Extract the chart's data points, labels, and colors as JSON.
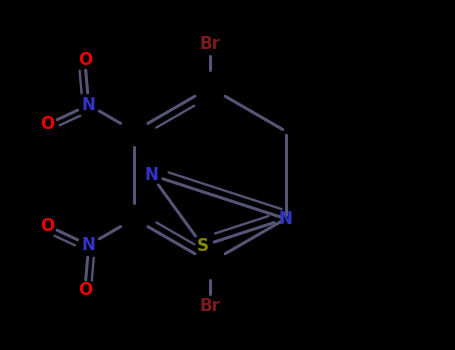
{
  "background_color": "#000000",
  "atom_colors": {
    "C": "#111111",
    "N": "#3333cc",
    "O": "#ee0000",
    "S": "#888800",
    "Br": "#7a1a1a"
  },
  "bond_color": "#555577",
  "bond_width": 2.2,
  "figsize": [
    4.55,
    3.5
  ],
  "dpi": 100
}
